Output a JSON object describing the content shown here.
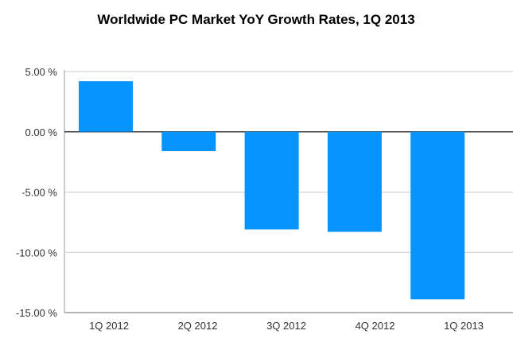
{
  "chart_data": {
    "type": "bar",
    "title": "Worldwide PC Market YoY Growth  Rates, 1Q 2013",
    "xlabel": "",
    "ylabel": "",
    "categories": [
      "1Q 2012",
      "2Q 2012",
      "3Q 2012",
      "4Q 2012",
      "1Q 2013"
    ],
    "values": [
      4.2,
      -1.6,
      -8.1,
      -8.3,
      -13.9
    ],
    "ylim": [
      -15,
      5
    ],
    "yticks": [
      5,
      0,
      -5,
      -10,
      -15
    ],
    "ytick_labels": [
      "5.00 %",
      "0.00 %",
      "-5.00 %",
      "-10.00 %",
      "-15.00 %"
    ],
    "grid": true,
    "legend": "none",
    "bar_color": "#0894fe"
  }
}
